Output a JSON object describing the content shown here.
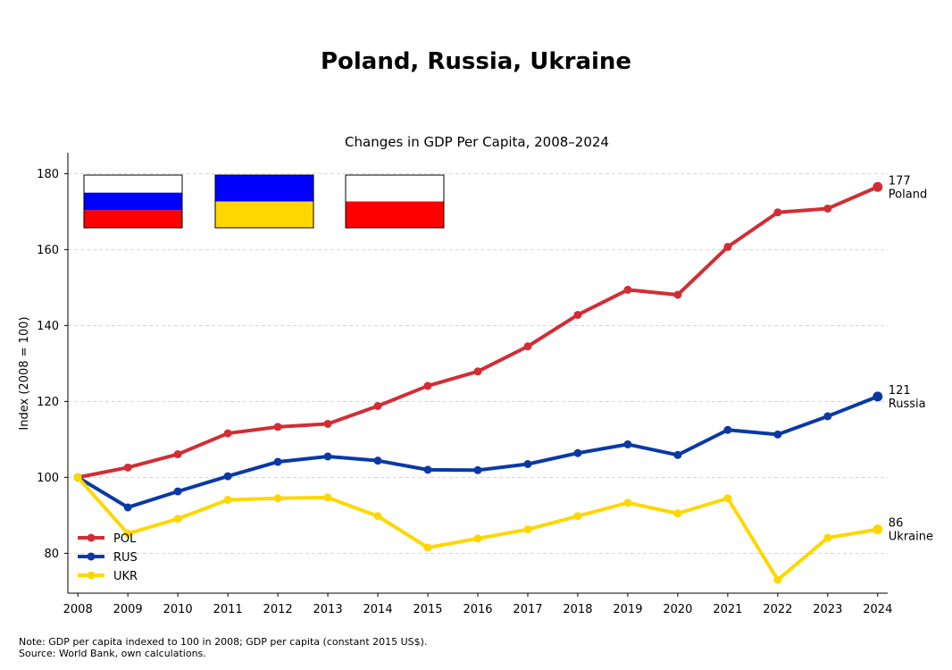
{
  "title": "Poland, Russia, Ukraine",
  "note": "Note: GDP per capita indexed to 100 in 2008; GDP per capita (constant 2015 US$).",
  "source": "Source: World Bank, own calculations.",
  "chart_data": {
    "type": "line",
    "title": "Changes in GDP Per Capita, 2008–2024",
    "xlabel": "",
    "ylabel": "Index (2008 = 100)",
    "xlim": [
      2007.8,
      2024.2
    ],
    "ylim": [
      69.5,
      185.5
    ],
    "x_ticks": [
      2008,
      2009,
      2010,
      2011,
      2012,
      2013,
      2014,
      2015,
      2016,
      2017,
      2018,
      2019,
      2020,
      2021,
      2022,
      2023,
      2024
    ],
    "y_ticks": [
      80,
      100,
      120,
      140,
      160,
      180
    ],
    "grid": "horizontal dashed",
    "legend_position": "bottom-left",
    "x": [
      2008,
      2009,
      2010,
      2011,
      2012,
      2013,
      2014,
      2015,
      2016,
      2017,
      2018,
      2019,
      2020,
      2021,
      2022,
      2023,
      2024
    ],
    "series": [
      {
        "name": "POL",
        "color": "#d22d34",
        "values": [
          100,
          102.6,
          106.1,
          111.6,
          113.3,
          114.1,
          118.8,
          124.1,
          127.9,
          134.5,
          142.8,
          149.4,
          148.1,
          160.7,
          169.8,
          170.8,
          176.5
        ],
        "end_value": "177",
        "end_label": "Poland"
      },
      {
        "name": "RUS",
        "color": "#0a39a5",
        "values": [
          100,
          92.1,
          96.3,
          100.3,
          104.1,
          105.5,
          104.4,
          102.0,
          101.9,
          103.5,
          106.4,
          108.7,
          105.9,
          112.5,
          111.3,
          116.1,
          121.3
        ],
        "end_value": "121",
        "end_label": "Russia"
      },
      {
        "name": "UKR",
        "color": "#ffd700",
        "values": [
          100,
          85.2,
          89.1,
          94.1,
          94.5,
          94.7,
          89.8,
          81.5,
          83.9,
          86.3,
          89.8,
          93.3,
          90.5,
          94.5,
          73.0,
          84.1,
          86.3
        ],
        "end_value": "86",
        "end_label": "Ukraine"
      }
    ],
    "flags": [
      {
        "name": "flag-russia",
        "stripes": [
          "#ffffff",
          "#0000ff",
          "#ff0000"
        ]
      },
      {
        "name": "flag-ukraine",
        "stripes": [
          "#0000ff",
          "#ffd700"
        ]
      },
      {
        "name": "flag-poland",
        "stripes": [
          "#ffffff",
          "#ff0000"
        ]
      }
    ]
  }
}
